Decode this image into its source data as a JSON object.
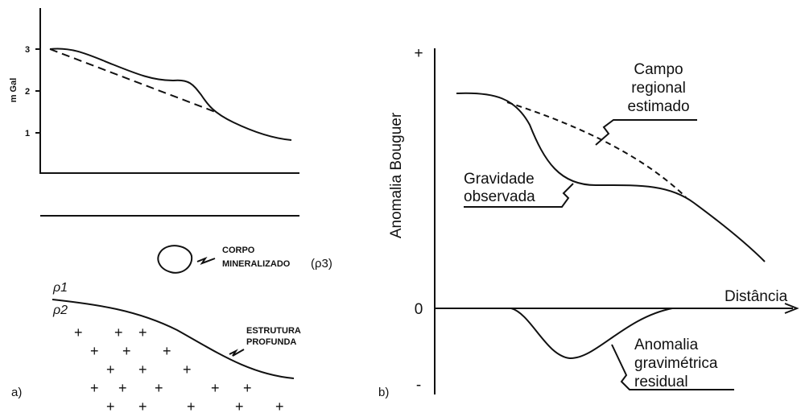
{
  "panel_a": {
    "label": "a)",
    "y_axis_label": "m Gal",
    "yticks": [
      3,
      2,
      1
    ],
    "body_label": [
      "CORPO",
      "MINERALIZADO",
      "(ρ3)"
    ],
    "layer_labels": [
      "ρ1",
      "ρ2"
    ],
    "structure_label": [
      "ESTRUTURA",
      "PROFUNDA"
    ]
  },
  "panel_b": {
    "label": "b)",
    "y_axis_label": "Anomalia Bouguer",
    "x_axis_label": "Distância",
    "y_marks": [
      "+",
      "0",
      "-"
    ],
    "regional_label": [
      "Campo",
      "regional",
      "estimado"
    ],
    "observed_label": [
      "Gravidade",
      "observada"
    ],
    "residual_label": [
      "Anomalia",
      "gravimétrica",
      "residual"
    ]
  }
}
